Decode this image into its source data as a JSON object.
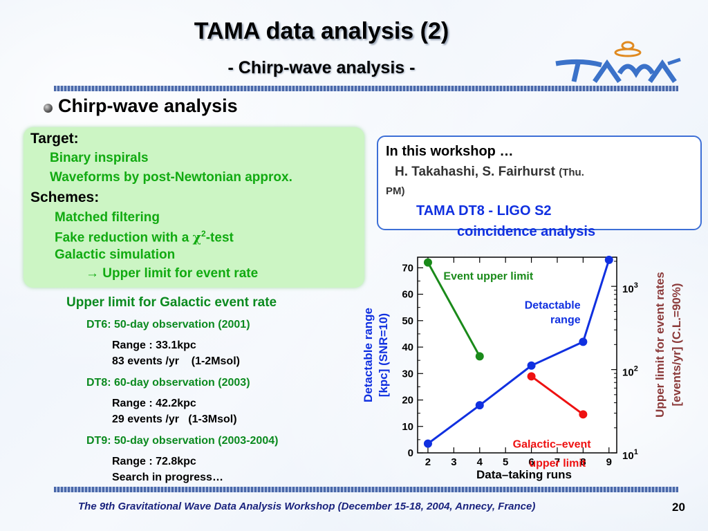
{
  "header": {
    "title": "TAMA data analysis (2)",
    "subtitle": "- Chirp-wave analysis -"
  },
  "section": {
    "heading": "Chirp-wave analysis"
  },
  "target_box": {
    "target_label": "Target:",
    "target_items": [
      "Binary inspirals",
      "Waveforms by post-Newtonian approx."
    ],
    "schemes_label": "Schemes:",
    "scheme_items": [
      "Matched filtering",
      "Fake reduction with a",
      "Galactic simulation",
      "Upper limit for event rate"
    ],
    "chi_symbol": "χ",
    "chi_sup": "2",
    "chi_suffix": "-test",
    "arrow": "→"
  },
  "workshop_box": {
    "heading": "In this workshop …",
    "names": "H. Takahashi, S. Fairhurst",
    "when": "(Thu.",
    "when2": "PM)",
    "topic1": "TAMA DT8 - LIGO S2",
    "topic2": "coincidence analysis"
  },
  "upper_limit": {
    "heading": "Upper limit for Galactic event rate",
    "runs": [
      {
        "heading": "DT6: 50-day observation (2001)",
        "line1": "Range : 33.1kpc",
        "line2": "83 events /yr    (1-2Msol)"
      },
      {
        "heading": "DT8: 60-day observation (2003)",
        "line1": "Range : 42.2kpc",
        "line2": "29 events /yr   (1-3Msol)"
      },
      {
        "heading": "DT9: 50-day observation (2003-2004)",
        "line1": "Range : 72.8kpc",
        "line2": "Search in progress…"
      }
    ]
  },
  "footer": {
    "text": "The 9th Gravitational Wave Data Analysis Workshop  (December 15-18, 2004, Annecy, France)",
    "page": "20"
  },
  "colors": {
    "green": "#11aa11",
    "dark_green": "#0b8a1f",
    "blue": "#1030e0",
    "red": "#ee1111",
    "maroon": "#8b3a3a",
    "box_border": "#3d6fd6"
  },
  "chart_data": {
    "type": "line",
    "xlabel": "Data–taking runs",
    "ylabel_left": "Detactable range [kpc] (SNR=10)",
    "ylabel_left_lines": [
      "Detactable range",
      "[kpc] (SNR=10)"
    ],
    "ylabel_right_lines": [
      "Upper limit for event rates",
      "[events/yr]  (C.L.=90%)"
    ],
    "xlim": [
      1.6,
      9.3
    ],
    "ylim_left": [
      0,
      74
    ],
    "ylim_right_log": [
      1,
      3.35
    ],
    "x_ticks": [
      "2",
      "3",
      "4",
      "5",
      "6",
      "7",
      "8",
      "9"
    ],
    "y_ticks_left": [
      "0",
      "10",
      "20",
      "30",
      "40",
      "50",
      "60",
      "70"
    ],
    "y_ticks_right": [
      {
        "base": "10",
        "exp": "1",
        "log": 1
      },
      {
        "base": "10",
        "exp": "2",
        "log": 2
      },
      {
        "base": "10",
        "exp": "3",
        "log": 3
      }
    ],
    "series": [
      {
        "name": "Detactable range",
        "label_lines": [
          "Detactable",
          "range"
        ],
        "color": "#1030e0",
        "axis": "left",
        "x": [
          2,
          4,
          6,
          8,
          9
        ],
        "y": [
          3.5,
          18,
          33,
          42,
          73
        ]
      },
      {
        "name": "Event upper limit",
        "label_lines": [
          "Event upper limit"
        ],
        "color": "#1a8a1a",
        "axis": "left",
        "x": [
          2,
          4
        ],
        "y": [
          72,
          36.5
        ]
      },
      {
        "name": "Galactic–event upper limit",
        "label_lines": [
          "Galactic–event",
          "upper limit"
        ],
        "color": "#ee1111",
        "axis": "right",
        "x": [
          6,
          8
        ],
        "y": [
          83,
          29
        ]
      }
    ]
  }
}
